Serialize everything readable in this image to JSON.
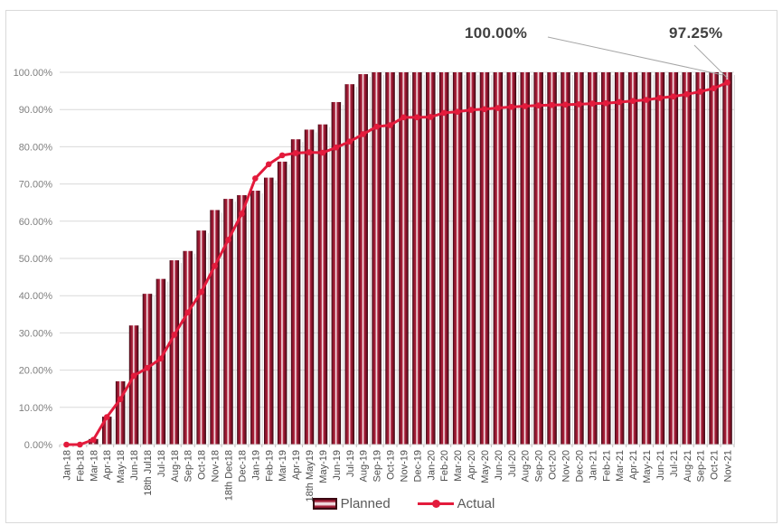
{
  "chart_data": {
    "type": "bar",
    "subtype": "combo-bar-line",
    "title": "",
    "xlabel": "",
    "ylabel": "",
    "ylim": [
      0,
      100
    ],
    "grid": true,
    "legend_position": "bottom",
    "y_tick_labels": [
      "0.00%",
      "10.00%",
      "20.00%",
      "30.00%",
      "40.00%",
      "50.00%",
      "60.00%",
      "70.00%",
      "80.00%",
      "90.00%",
      "100.00%"
    ],
    "categories": [
      "Jan-18",
      "Feb-18",
      "Mar-18",
      "Apr-18",
      "May-18",
      "Jun-18",
      "18th Jul18",
      "Jul-18",
      "Aug-18",
      "Sep-18",
      "Oct-18",
      "Nov-18",
      "18th Dec18",
      "Dec-18",
      "Jan-19",
      "Feb-19",
      "Mar-19",
      "Apr-19",
      "18th May19",
      "May-19",
      "Jun-19",
      "Jul-19",
      "Aug-19",
      "Sep-19",
      "Oct-19",
      "Nov-19",
      "Dec-19",
      "Jan-20",
      "Feb-20",
      "Mar-20",
      "Apr-20",
      "May-20",
      "Jun-20",
      "Jul-20",
      "Aug-20",
      "Sep-20",
      "Oct-20",
      "Nov-20",
      "Dec-20",
      "Jan-21",
      "Feb-21",
      "Mar-21",
      "Apr-21",
      "May-21",
      "Jun-21",
      "Jul-21",
      "Aug-21",
      "Sep-21",
      "Oct-21",
      "Nov-21"
    ],
    "series": [
      {
        "name": "Planned",
        "type": "bar",
        "color": "#9E1B33",
        "values": [
          0,
          0,
          1.5,
          7.5,
          17,
          32,
          40.5,
          44.5,
          49.5,
          52,
          57.5,
          63,
          66,
          67,
          68.2,
          71.7,
          76,
          82,
          84.6,
          86,
          92,
          96.8,
          99.5,
          100,
          100,
          100,
          100,
          100,
          100,
          100,
          100,
          100,
          100,
          100,
          100,
          100,
          100,
          100,
          100,
          100,
          100,
          100,
          100,
          100,
          100,
          100,
          100,
          100,
          100,
          100
        ]
      },
      {
        "name": "Actual",
        "type": "line",
        "color": "#E31B3C",
        "values": [
          0,
          0,
          1.3,
          7.4,
          12.2,
          18.5,
          20.6,
          23.1,
          29.5,
          35.5,
          41,
          48,
          55,
          62,
          71.5,
          75.3,
          77.7,
          78.3,
          78.5,
          78.4,
          79.8,
          81.4,
          83.4,
          85.4,
          85.8,
          87.9,
          87.9,
          88,
          89.1,
          89.4,
          89.9,
          90.1,
          90.4,
          90.7,
          90.9,
          91.1,
          91.2,
          91.3,
          91.4,
          91.6,
          91.7,
          92,
          92.3,
          92.6,
          93.1,
          93.5,
          94.1,
          94.8,
          95.7,
          97.25
        ]
      }
    ],
    "annotations": [
      {
        "text": "100.00%",
        "points_to": "last Planned bar (Nov-21)"
      },
      {
        "text": "97.25%",
        "points_to": "last Actual point (Nov-21)"
      }
    ]
  },
  "annotations": {
    "planned_final": "100.00%",
    "actual_final": "97.25%"
  },
  "legend": {
    "planned": "Planned",
    "actual": "Actual"
  },
  "colors": {
    "bar_dark": "#2E040E",
    "bar_main": "#9E1B33",
    "bar_highlight": "#F7ECEE",
    "line": "#E31B3C",
    "gridline": "#D9D9D9",
    "axis_tick": "#BFBFBF",
    "y_label": "#7F7F7F",
    "x_label": "#4D4D4D",
    "annotation_text": "#404040",
    "leader_line": "#A6A6A6",
    "bar_side_shadow": "#CFCFCF"
  }
}
